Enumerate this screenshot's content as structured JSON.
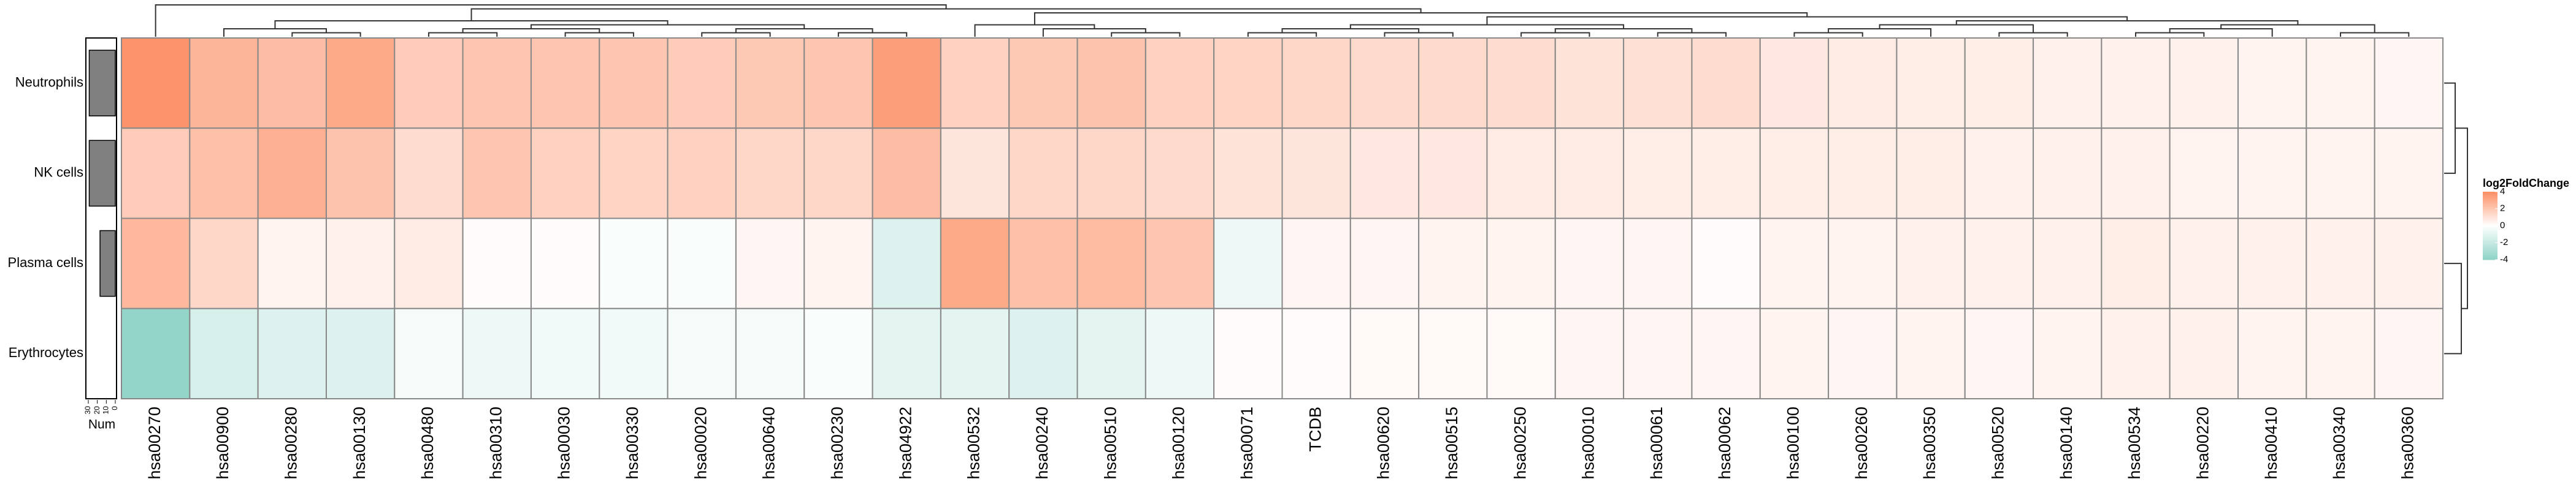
{
  "chart_data": {
    "type": "heatmap",
    "rows": [
      "Neutrophils",
      "NK cells",
      "Plasma cells",
      "Erythrocytes"
    ],
    "columns": [
      "hsa00270",
      "hsa00900",
      "hsa00280",
      "hsa00130",
      "hsa00480",
      "hsa00310",
      "hsa00030",
      "hsa00330",
      "hsa00020",
      "hsa00640",
      "hsa00230",
      "hsa04922",
      "hsa00532",
      "hsa00240",
      "hsa00510",
      "hsa00120",
      "hsa00071",
      "TCDB",
      "hsa00620",
      "hsa00515",
      "hsa00250",
      "hsa00010",
      "hsa00061",
      "hsa00062",
      "hsa00100",
      "hsa00260",
      "hsa00350",
      "hsa00520",
      "hsa00140",
      "hsa00534",
      "hsa00220",
      "hsa00410",
      "hsa00340",
      "hsa00360"
    ],
    "values": [
      [
        3.8,
        2.6,
        2.3,
        3.0,
        1.8,
        2.0,
        2.0,
        2.0,
        1.8,
        1.9,
        2.0,
        3.4,
        1.6,
        1.9,
        2.1,
        1.6,
        1.5,
        1.4,
        1.3,
        1.3,
        1.2,
        1.0,
        1.1,
        1.2,
        0.8,
        0.7,
        0.6,
        0.6,
        0.5,
        0.5,
        0.5,
        0.4,
        0.4,
        0.3
      ],
      [
        1.8,
        2.2,
        2.8,
        2.1,
        1.2,
        2.0,
        1.6,
        1.5,
        1.6,
        1.4,
        1.4,
        2.3,
        0.9,
        1.4,
        1.4,
        1.3,
        1.0,
        0.9,
        0.8,
        0.8,
        0.7,
        0.7,
        0.6,
        0.6,
        0.6,
        0.6,
        0.6,
        0.5,
        0.5,
        0.5,
        0.4,
        0.4,
        0.4,
        0.4
      ],
      [
        2.5,
        1.4,
        0.4,
        0.5,
        0.7,
        0.1,
        0.1,
        -0.2,
        -0.2,
        0.3,
        0.4,
        -1.2,
        3.0,
        2.2,
        2.4,
        2.0,
        -0.6,
        0.3,
        0.3,
        0.4,
        0.4,
        0.3,
        0.3,
        0.1,
        0.4,
        0.4,
        0.5,
        0.5,
        0.5,
        0.6,
        0.5,
        0.5,
        0.5,
        0.5
      ],
      [
        -3.8,
        -1.5,
        -1.2,
        -1.2,
        -0.4,
        -0.6,
        -0.5,
        -0.5,
        -0.4,
        -0.4,
        -0.2,
        -1.0,
        -1.0,
        -1.2,
        -1.0,
        -0.6,
        0.1,
        0.1,
        0.2,
        0.2,
        0.2,
        0.3,
        0.3,
        0.3,
        0.4,
        0.3,
        0.4,
        0.3,
        0.4,
        0.5,
        0.5,
        0.4,
        0.4,
        0.3
      ]
    ],
    "color_low": "#8ed3c6",
    "color_mid": "#ffffff",
    "color_high": "#fc8d62",
    "legend": {
      "title": "log2FoldChange",
      "lim": [
        -4,
        4
      ],
      "ticks": [
        4,
        2,
        0,
        -2,
        -4
      ]
    },
    "annotation": {
      "title": "Num",
      "values": [
        29,
        29,
        17,
        0
      ],
      "lim": [
        0,
        30
      ],
      "ticks": [
        30,
        20,
        10,
        0
      ],
      "color": "#808080"
    }
  }
}
